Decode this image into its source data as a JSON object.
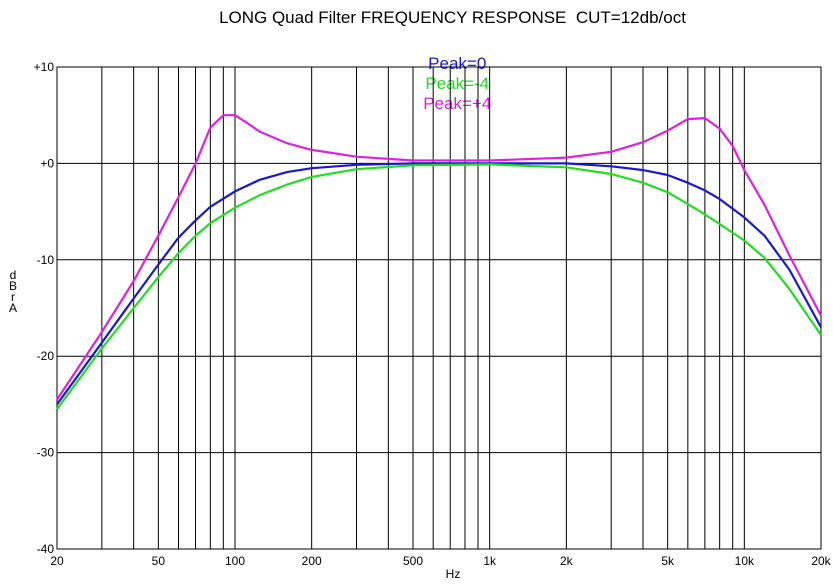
{
  "chart_data": {
    "type": "line",
    "title": "LONG Quad Filter FREQUENCY RESPONSE  CUT=12db/oct",
    "xlabel": "Hz",
    "ylabel": [
      "d",
      "B",
      "r",
      "",
      "A"
    ],
    "x_scale": "log",
    "xlim": [
      20,
      20000
    ],
    "ylim": [
      -40,
      10
    ],
    "grid": true,
    "legend_position": "top-center",
    "x_ticks": [
      {
        "value": 20,
        "label": "20"
      },
      {
        "value": 50,
        "label": "50"
      },
      {
        "value": 100,
        "label": "100"
      },
      {
        "value": 200,
        "label": "200"
      },
      {
        "value": 500,
        "label": "500"
      },
      {
        "value": 1000,
        "label": "1k"
      },
      {
        "value": 2000,
        "label": "2k"
      },
      {
        "value": 5000,
        "label": "5k"
      },
      {
        "value": 10000,
        "label": "10k"
      },
      {
        "value": 20000,
        "label": "20k"
      }
    ],
    "y_ticks": [
      {
        "value": 10,
        "label": "+10"
      },
      {
        "value": 0,
        "label": "+0"
      },
      {
        "value": -10,
        "label": "-10"
      },
      {
        "value": -20,
        "label": "-20"
      },
      {
        "value": -30,
        "label": "-30"
      },
      {
        "value": -40,
        "label": "-40"
      }
    ],
    "series": [
      {
        "name": "Peak=0",
        "color": "#1a1acc",
        "points": [
          [
            20,
            -25
          ],
          [
            30,
            -18.6
          ],
          [
            40,
            -14
          ],
          [
            50,
            -10.5
          ],
          [
            60,
            -7.7
          ],
          [
            70,
            -5.9
          ],
          [
            80,
            -4.5
          ],
          [
            100,
            -2.9
          ],
          [
            125,
            -1.7
          ],
          [
            160,
            -0.9
          ],
          [
            200,
            -0.5
          ],
          [
            300,
            -0.15
          ],
          [
            500,
            0
          ],
          [
            1000,
            0
          ],
          [
            2000,
            0
          ],
          [
            3000,
            -0.3
          ],
          [
            4000,
            -0.7
          ],
          [
            5000,
            -1.2
          ],
          [
            6000,
            -2
          ],
          [
            7000,
            -2.8
          ],
          [
            8000,
            -3.7
          ],
          [
            10000,
            -5.6
          ],
          [
            12000,
            -7.5
          ],
          [
            15000,
            -11
          ],
          [
            20000,
            -17
          ]
        ]
      },
      {
        "name": "Peak=-4",
        "color": "#22dd22",
        "points": [
          [
            20,
            -25.5
          ],
          [
            30,
            -19.2
          ],
          [
            40,
            -15
          ],
          [
            50,
            -11.8
          ],
          [
            60,
            -9.3
          ],
          [
            70,
            -7.5
          ],
          [
            80,
            -6.2
          ],
          [
            100,
            -4.6
          ],
          [
            125,
            -3.3
          ],
          [
            160,
            -2.2
          ],
          [
            200,
            -1.4
          ],
          [
            300,
            -0.6
          ],
          [
            500,
            -0.2
          ],
          [
            1000,
            -0.1
          ],
          [
            2000,
            -0.4
          ],
          [
            3000,
            -1.1
          ],
          [
            4000,
            -2
          ],
          [
            5000,
            -3
          ],
          [
            6000,
            -4.2
          ],
          [
            7000,
            -5.3
          ],
          [
            8000,
            -6.3
          ],
          [
            10000,
            -8
          ],
          [
            12000,
            -9.8
          ],
          [
            15000,
            -13
          ],
          [
            20000,
            -17.8
          ]
        ]
      },
      {
        "name": "Peak=+4",
        "color": "#dd22dd",
        "points": [
          [
            20,
            -24.5
          ],
          [
            30,
            -17.5
          ],
          [
            40,
            -12.2
          ],
          [
            50,
            -7.5
          ],
          [
            60,
            -3.5
          ],
          [
            70,
            0
          ],
          [
            80,
            3.7
          ],
          [
            90,
            5
          ],
          [
            100,
            5
          ],
          [
            110,
            4.3
          ],
          [
            125,
            3.3
          ],
          [
            160,
            2.1
          ],
          [
            200,
            1.4
          ],
          [
            300,
            0.7
          ],
          [
            500,
            0.3
          ],
          [
            1000,
            0.3
          ],
          [
            2000,
            0.6
          ],
          [
            3000,
            1.2
          ],
          [
            4000,
            2.2
          ],
          [
            5000,
            3.4
          ],
          [
            6000,
            4.6
          ],
          [
            7000,
            4.7
          ],
          [
            8000,
            3.6
          ],
          [
            9000,
            1.8
          ],
          [
            10000,
            -0.7
          ],
          [
            12000,
            -4.3
          ],
          [
            15000,
            -9.5
          ],
          [
            20000,
            -15.8
          ]
        ]
      }
    ]
  }
}
